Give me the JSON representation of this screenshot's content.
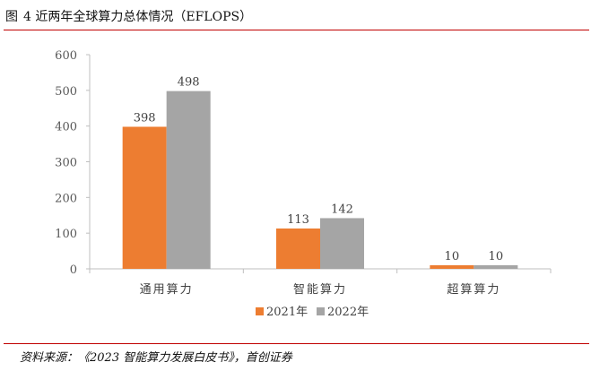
{
  "figure": {
    "label": "图",
    "number": "4",
    "title": "近两年全球算力总体情况（EFLOPS）"
  },
  "source": "资料来源：《2023 智能算力发展白皮书》，首创证券",
  "colors": {
    "rule": "#c00000",
    "series_2021": "#ed7d31",
    "series_2022": "#a5a5a5",
    "axis": "#bfbfbf"
  },
  "chart_data": {
    "type": "bar",
    "title": "",
    "xlabel": "",
    "ylabel": "",
    "categories": [
      "通用算力",
      "智能算力",
      "超算算力"
    ],
    "series": [
      {
        "name": "2021年",
        "values": [
          398,
          113,
          10
        ]
      },
      {
        "name": "2022年",
        "values": [
          498,
          142,
          10
        ]
      }
    ],
    "ylim": [
      0,
      600
    ],
    "yticks": [
      0,
      100,
      200,
      300,
      400,
      500,
      600
    ],
    "grid": false,
    "legend": "bottom",
    "data_labels": true
  }
}
